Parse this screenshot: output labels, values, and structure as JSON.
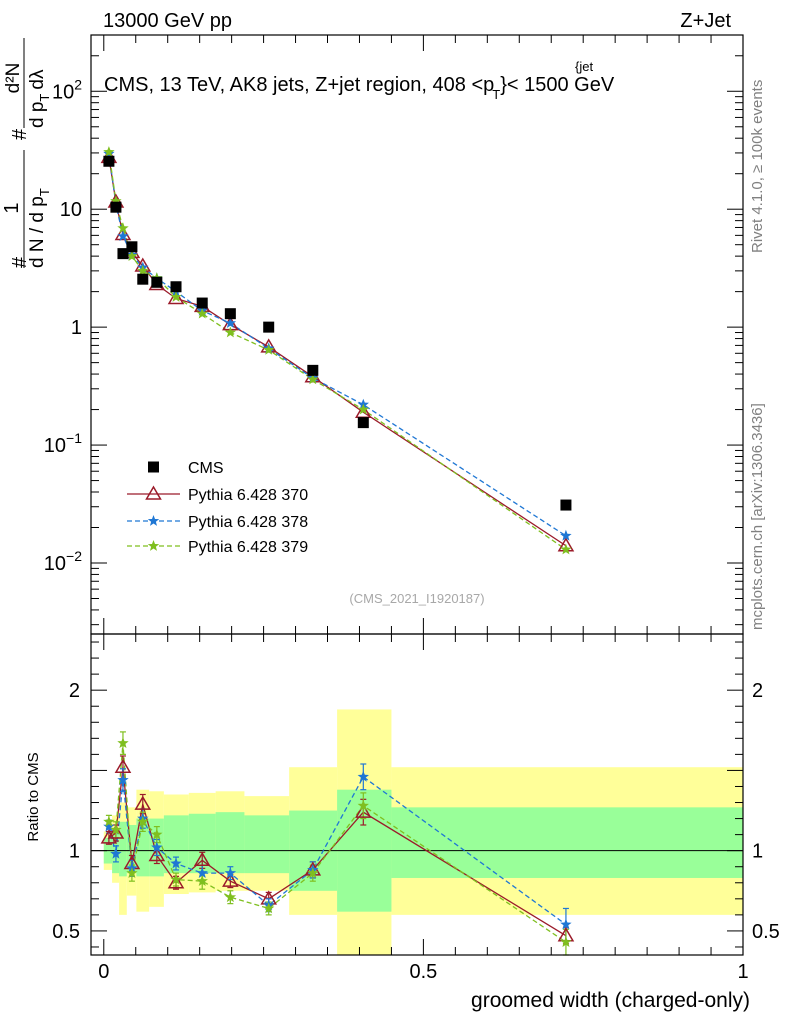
{
  "header": {
    "left": "13000 GeV pp",
    "right": "Z+Jet"
  },
  "side_labels": {
    "rivet": "Rivet 4.1.0, ≥ 100k events",
    "mcplots": "mcplots.cern.ch [arXiv:1306.3436]"
  },
  "watermark": "(CMS_2021_I1920187)",
  "chart_data": [
    {
      "type": "scatter",
      "panel": "main",
      "title": "CMS, 13 TeV, AK8 jets, Z+jet region, 408 <p_T^{jet}< 1500 GeV",
      "title_parts": {
        "pre": "CMS, 13 TeV, AK8 jets, Z+jet region, 408 <p",
        "sup": "{jet",
        "sub": "T",
        "post": "}< 1500 GeV"
      },
      "ylabel": "1/dN/dp_T  d²N/dp_T dλ",
      "ylabel_parts": {
        "hash": "#",
        "one": "1",
        "den": "d N / d p",
        "den_sub": "T",
        "num": "d²N",
        "num_den": "d p",
        "num_den_sub": "T",
        "num_den_post": "dλ"
      },
      "yscale": "log",
      "ylim": [
        0.0025,
        300
      ],
      "xlim": [
        -0.02,
        1.0
      ],
      "y_ticks": [
        {
          "value": 0.01,
          "base": "10",
          "exp": "−2"
        },
        {
          "value": 0.1,
          "base": "10",
          "exp": "−1"
        },
        {
          "value": 1,
          "base": "1",
          "exp": ""
        },
        {
          "value": 10,
          "base": "10",
          "exp": ""
        },
        {
          "value": 100,
          "base": "10",
          "exp": "2"
        }
      ],
      "legend": [
        {
          "name": "CMS",
          "marker": "square",
          "color": "#000000",
          "dash": ""
        },
        {
          "name": "Pythia 6.428 370",
          "marker": "triangle",
          "color": "#9b1b2a",
          "dash": ""
        },
        {
          "name": "Pythia 6.428 378",
          "marker": "star",
          "color": "#1f77d4",
          "dash": "5,3"
        },
        {
          "name": "Pythia 6.428 379",
          "marker": "star",
          "color": "#7fbf1f",
          "dash": "5,3"
        }
      ],
      "legend_position": "lower-left",
      "data": {
        "x": [
          0.008,
          0.019,
          0.03,
          0.044,
          0.061,
          0.083,
          0.113,
          0.154,
          0.198,
          0.258,
          0.327,
          0.406,
          0.723
        ],
        "y": [
          25.5,
          10.4,
          4.2,
          4.8,
          2.55,
          2.4,
          2.2,
          1.6,
          1.3,
          1.0,
          0.43,
          0.155,
          0.031
        ]
      },
      "series": [
        {
          "name": "Pythia 6.428 370",
          "x": [
            0.008,
            0.019,
            0.03,
            0.044,
            0.061,
            0.083,
            0.113,
            0.154,
            0.198,
            0.258,
            0.327,
            0.406,
            0.723
          ],
          "y": [
            27.5,
            11.5,
            6.1,
            4.3,
            3.3,
            2.3,
            1.75,
            1.5,
            1.05,
            0.68,
            0.38,
            0.19,
            0.014
          ]
        },
        {
          "name": "Pythia 6.428 378",
          "x": [
            0.008,
            0.019,
            0.03,
            0.044,
            0.061,
            0.083,
            0.113,
            0.154,
            0.198,
            0.258,
            0.327,
            0.406,
            0.723
          ],
          "y": [
            29.5,
            11.0,
            5.9,
            4.1,
            3.2,
            2.6,
            2.0,
            1.38,
            1.08,
            0.66,
            0.37,
            0.22,
            0.017
          ]
        },
        {
          "name": "Pythia 6.428 379",
          "x": [
            0.008,
            0.019,
            0.03,
            0.044,
            0.061,
            0.083,
            0.113,
            0.154,
            0.198,
            0.258,
            0.327,
            0.406,
            0.723
          ],
          "y": [
            30.5,
            11.7,
            6.9,
            4.0,
            3.0,
            2.6,
            1.8,
            1.3,
            0.9,
            0.64,
            0.36,
            0.2,
            0.013
          ]
        }
      ]
    },
    {
      "type": "scatter",
      "panel": "ratio",
      "ylabel": "Ratio to CMS",
      "xlabel": "groomed width (charged-only)",
      "ylim": [
        0.35,
        2.35
      ],
      "xlim": [
        -0.02,
        1.0
      ],
      "x_ticks": [
        0,
        0.5,
        1
      ],
      "x_tick_labels": [
        "0",
        "0.5",
        "1"
      ],
      "y_ticks": [
        0.5,
        1,
        2
      ],
      "y_tick_labels": [
        "0.5",
        "1",
        "2"
      ],
      "bands": {
        "edges": [
          0.0,
          0.013,
          0.024,
          0.036,
          0.051,
          0.071,
          0.094,
          0.133,
          0.175,
          0.22,
          0.29,
          0.365,
          0.45,
          1.0
        ],
        "green_lo": [
          0.92,
          0.86,
          0.84,
          0.86,
          0.84,
          0.84,
          0.86,
          0.86,
          0.86,
          0.86,
          0.75,
          0.62,
          0.83
        ],
        "green_hi": [
          1.08,
          1.14,
          1.18,
          1.16,
          1.2,
          1.2,
          1.22,
          1.23,
          1.24,
          1.22,
          1.25,
          1.38,
          1.27
        ],
        "yellow_lo": [
          0.88,
          0.8,
          0.6,
          0.72,
          0.62,
          0.65,
          0.73,
          0.74,
          0.75,
          0.75,
          0.6,
          0.35,
          0.6
        ],
        "yellow_hi": [
          1.12,
          1.22,
          1.3,
          1.27,
          1.38,
          1.37,
          1.35,
          1.36,
          1.37,
          1.34,
          1.52,
          1.88,
          1.52
        ]
      },
      "series": [
        {
          "name": "Pythia 6.428 370",
          "x": [
            0.008,
            0.019,
            0.03,
            0.044,
            0.061,
            0.083,
            0.113,
            0.154,
            0.198,
            0.258,
            0.327,
            0.406,
            0.723
          ],
          "y": [
            1.08,
            1.11,
            1.52,
            0.92,
            1.29,
            0.97,
            0.8,
            0.94,
            0.81,
            0.7,
            0.88,
            1.24,
            0.47
          ],
          "err": [
            0.04,
            0.05,
            0.07,
            0.05,
            0.06,
            0.05,
            0.04,
            0.05,
            0.04,
            0.04,
            0.05,
            0.08,
            0.05
          ]
        },
        {
          "name": "Pythia 6.428 378",
          "x": [
            0.008,
            0.019,
            0.03,
            0.044,
            0.061,
            0.083,
            0.113,
            0.154,
            0.198,
            0.258,
            0.327,
            0.406,
            0.723
          ],
          "y": [
            1.15,
            0.98,
            1.44,
            0.89,
            1.2,
            1.02,
            0.92,
            0.86,
            0.86,
            0.66,
            0.88,
            1.46,
            0.54
          ],
          "err": [
            0.04,
            0.05,
            0.07,
            0.05,
            0.06,
            0.05,
            0.04,
            0.05,
            0.04,
            0.04,
            0.05,
            0.08,
            0.1
          ]
        },
        {
          "name": "Pythia 6.428 379",
          "x": [
            0.008,
            0.019,
            0.03,
            0.044,
            0.061,
            0.083,
            0.113,
            0.154,
            0.198,
            0.258,
            0.327,
            0.406,
            0.723
          ],
          "y": [
            1.18,
            1.13,
            1.67,
            0.86,
            1.18,
            1.1,
            0.82,
            0.81,
            0.71,
            0.64,
            0.86,
            1.28,
            0.43
          ],
          "err": [
            0.04,
            0.05,
            0.07,
            0.05,
            0.06,
            0.05,
            0.04,
            0.05,
            0.04,
            0.04,
            0.05,
            0.08,
            0.08
          ]
        }
      ]
    }
  ]
}
